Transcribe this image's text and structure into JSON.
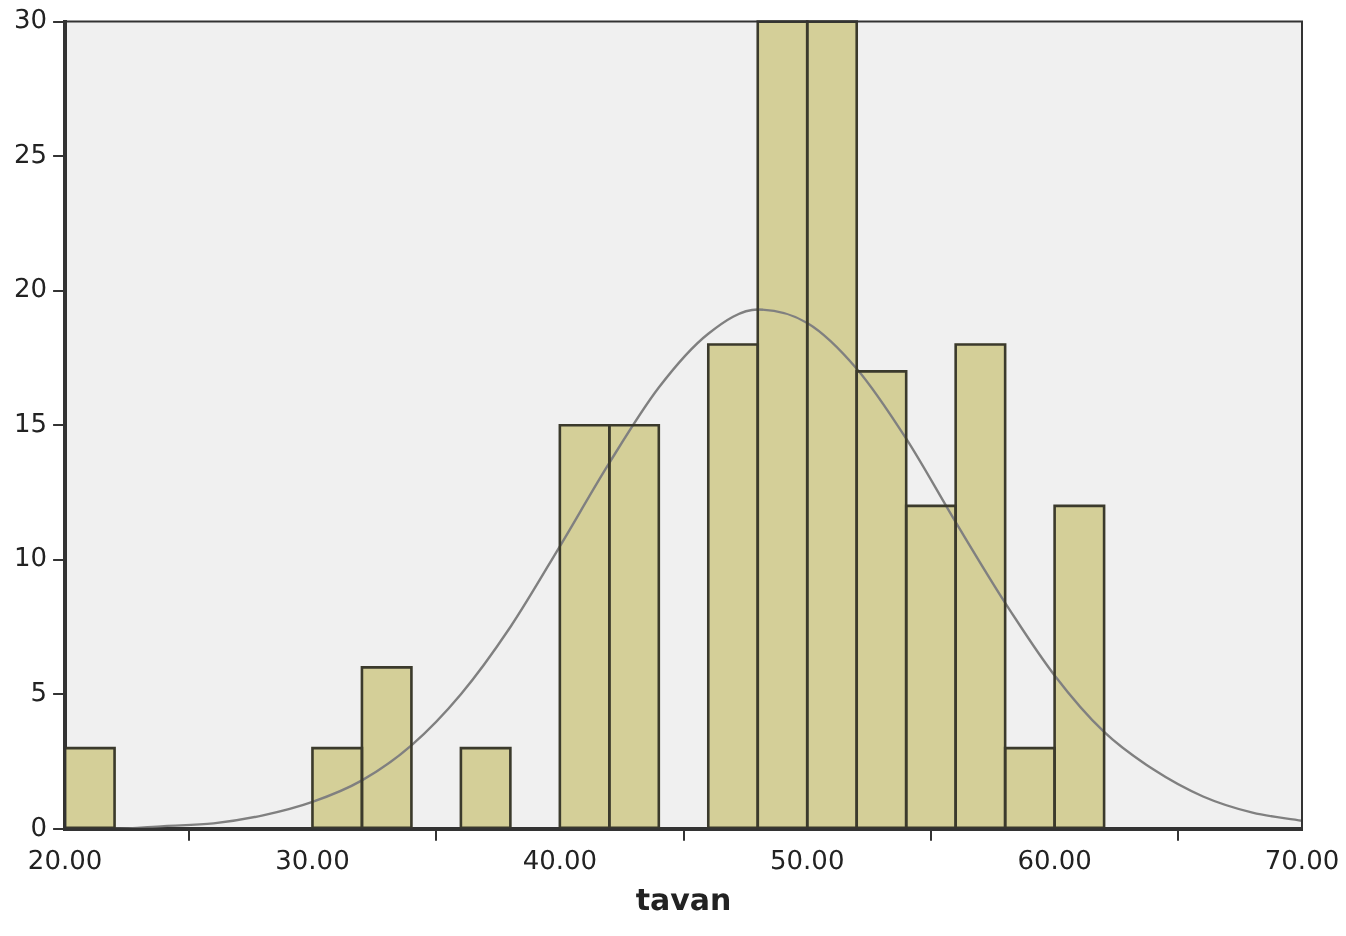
{
  "chart_data": {
    "type": "histogram",
    "xlabel": "tavan",
    "bins": [
      20,
      22,
      24,
      26,
      28,
      30,
      32,
      34,
      36,
      38,
      40,
      42,
      44,
      46,
      48,
      50,
      52,
      54,
      56,
      58,
      60,
      62
    ],
    "series": [
      {
        "color": "#d4cf98",
        "values": [
          3,
          0,
          0,
          0,
          0,
          3,
          6,
          0,
          3,
          0,
          15,
          15,
          0,
          18,
          30,
          30,
          17,
          12,
          18,
          3,
          12
        ]
      },
      {
        "type": "line",
        "color": "#808080",
        "x": [
          20,
          22,
          24,
          26,
          28,
          30,
          32,
          34,
          36,
          38,
          40,
          42,
          44,
          46,
          48,
          50,
          52,
          54,
          56,
          58,
          60,
          62,
          64,
          66,
          68,
          70
        ],
        "values": [
          0.0,
          0.0,
          0.1,
          0.2,
          0.5,
          1.0,
          1.8,
          3.1,
          5.0,
          7.5,
          10.5,
          13.6,
          16.4,
          18.4,
          19.3,
          18.8,
          17.1,
          14.5,
          11.4,
          8.4,
          5.7,
          3.6,
          2.2,
          1.2,
          0.6,
          0.3
        ]
      }
    ],
    "xlim": [
      20,
      70
    ],
    "xticks": [
      {
        "value": 20,
        "label": "20.00"
      },
      {
        "value": 30,
        "label": "30.00"
      },
      {
        "value": 40,
        "label": "40.00"
      },
      {
        "value": 50,
        "label": "50.00"
      },
      {
        "value": 60,
        "label": "60.00"
      },
      {
        "value": 70,
        "label": "70.00"
      }
    ],
    "ylim": [
      0,
      30
    ],
    "yticks": [
      0,
      5,
      10,
      15,
      20,
      25,
      30
    ],
    "grid": false,
    "legend": false,
    "marker": "none",
    "line_style": "solid"
  }
}
